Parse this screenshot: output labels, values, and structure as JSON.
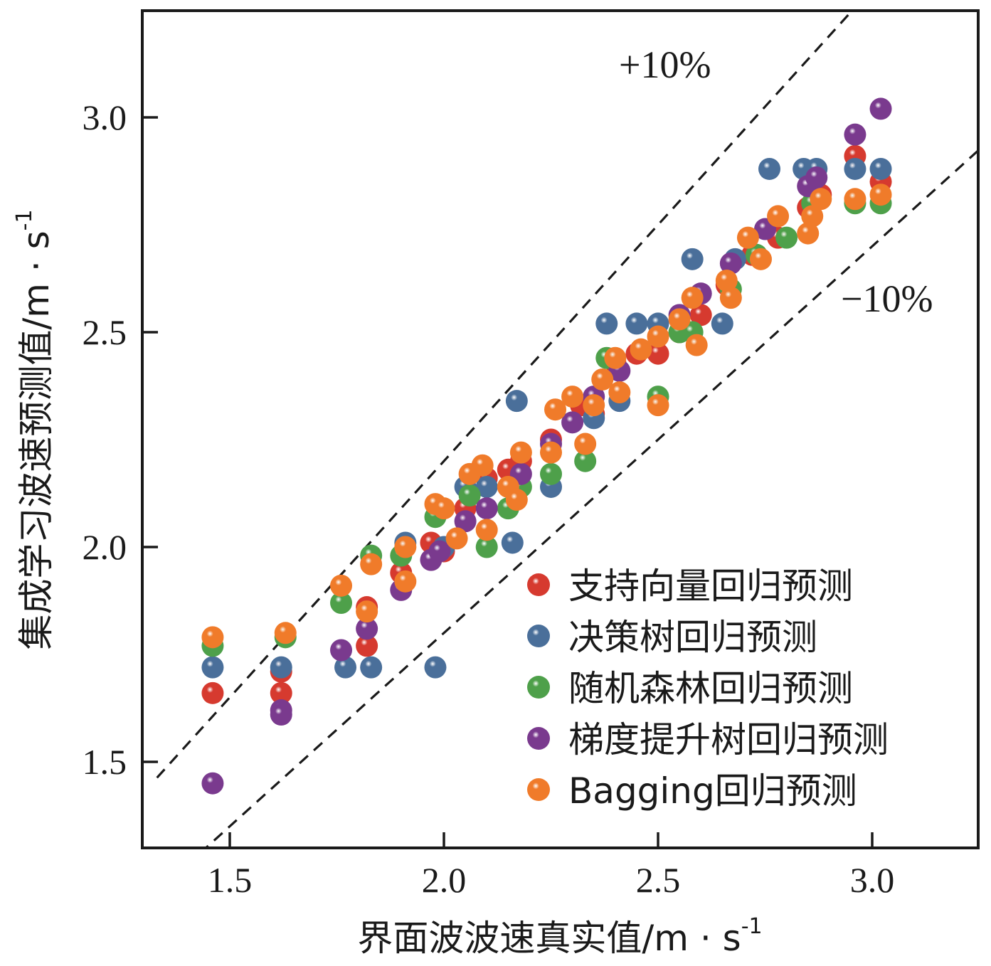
{
  "chart_data": {
    "type": "scatter",
    "xlabel": "界面波波速真实值/m · s",
    "xlabel_sup": "-1",
    "ylabel": "集成学习波速预测值/m · s",
    "ylabel_sup": "-1",
    "xlim": [
      1.33,
      3.25
    ],
    "ylim": [
      1.3,
      3.25
    ],
    "xticks": [
      1.5,
      2.0,
      2.5,
      3.0
    ],
    "xtick_labels": [
      "1.5",
      "2.0",
      "2.5",
      "3.0"
    ],
    "yticks": [
      1.5,
      2.0,
      2.5,
      3.0
    ],
    "ytick_labels": [
      "1.5",
      "2.0",
      "2.5",
      "3.0"
    ],
    "grid": false,
    "legend_position": "bottom-right",
    "annotations": [
      {
        "text": "+10%",
        "x": 2.55,
        "y": 3.12
      },
      {
        "text": "−10%",
        "x": 3.15,
        "y": 2.58
      }
    ],
    "reference_lines": [
      {
        "name": "+10%",
        "slope": 1.1
      },
      {
        "name": "-10%",
        "slope": 0.9
      }
    ],
    "series": [
      {
        "name": "支持向量回归预测",
        "color": "#d63a2f",
        "points": [
          [
            1.46,
            1.66
          ],
          [
            1.62,
            1.71
          ],
          [
            1.62,
            1.66
          ],
          [
            1.82,
            1.77
          ],
          [
            1.82,
            1.86
          ],
          [
            1.9,
            1.94
          ],
          [
            1.97,
            2.01
          ],
          [
            2.0,
            1.99
          ],
          [
            2.05,
            2.09
          ],
          [
            2.1,
            2.16
          ],
          [
            2.15,
            2.18
          ],
          [
            2.18,
            2.2
          ],
          [
            2.25,
            2.25
          ],
          [
            2.32,
            2.33
          ],
          [
            2.35,
            2.31
          ],
          [
            2.4,
            2.43
          ],
          [
            2.45,
            2.45
          ],
          [
            2.5,
            2.45
          ],
          [
            2.55,
            2.5
          ],
          [
            2.6,
            2.54
          ],
          [
            2.66,
            2.61
          ],
          [
            2.72,
            2.68
          ],
          [
            2.78,
            2.72
          ],
          [
            2.85,
            2.79
          ],
          [
            2.88,
            2.82
          ],
          [
            2.96,
            2.91
          ],
          [
            3.02,
            2.85
          ]
        ]
      },
      {
        "name": "决策树回归预测",
        "color": "#4a6f9a",
        "points": [
          [
            1.46,
            1.72
          ],
          [
            1.62,
            1.72
          ],
          [
            1.77,
            1.72
          ],
          [
            1.83,
            1.72
          ],
          [
            1.91,
            2.01
          ],
          [
            1.98,
            1.72
          ],
          [
            2.0,
            2.0
          ],
          [
            2.05,
            2.14
          ],
          [
            2.1,
            2.14
          ],
          [
            2.16,
            2.01
          ],
          [
            2.17,
            2.34
          ],
          [
            2.25,
            2.14
          ],
          [
            2.35,
            2.3
          ],
          [
            2.38,
            2.52
          ],
          [
            2.41,
            2.34
          ],
          [
            2.45,
            2.52
          ],
          [
            2.5,
            2.52
          ],
          [
            2.58,
            2.67
          ],
          [
            2.65,
            2.52
          ],
          [
            2.68,
            2.67
          ],
          [
            2.76,
            2.88
          ],
          [
            2.84,
            2.88
          ],
          [
            2.87,
            2.88
          ],
          [
            2.96,
            2.88
          ],
          [
            3.02,
            2.88
          ]
        ]
      },
      {
        "name": "随机森林回归预测",
        "color": "#4ea04a",
        "points": [
          [
            1.46,
            1.77
          ],
          [
            1.63,
            1.79
          ],
          [
            1.76,
            1.87
          ],
          [
            1.83,
            1.98
          ],
          [
            1.9,
            1.98
          ],
          [
            1.98,
            2.07
          ],
          [
            2.06,
            2.12
          ],
          [
            2.1,
            2.0
          ],
          [
            2.15,
            2.09
          ],
          [
            2.18,
            2.14
          ],
          [
            2.25,
            2.17
          ],
          [
            2.33,
            2.2
          ],
          [
            2.38,
            2.44
          ],
          [
            2.5,
            2.35
          ],
          [
            2.55,
            2.5
          ],
          [
            2.58,
            2.5
          ],
          [
            2.67,
            2.6
          ],
          [
            2.73,
            2.68
          ],
          [
            2.8,
            2.72
          ],
          [
            2.86,
            2.8
          ],
          [
            2.96,
            2.8
          ],
          [
            3.02,
            2.8
          ]
        ]
      },
      {
        "name": "梯度提升树回归预测",
        "color": "#7a3a8e",
        "points": [
          [
            1.46,
            1.45
          ],
          [
            1.62,
            1.62
          ],
          [
            1.62,
            1.61
          ],
          [
            1.76,
            1.76
          ],
          [
            1.82,
            1.81
          ],
          [
            1.9,
            1.9
          ],
          [
            1.97,
            1.97
          ],
          [
            1.99,
            1.99
          ],
          [
            2.05,
            2.06
          ],
          [
            2.1,
            2.09
          ],
          [
            2.18,
            2.17
          ],
          [
            2.25,
            2.24
          ],
          [
            2.3,
            2.29
          ],
          [
            2.35,
            2.35
          ],
          [
            2.41,
            2.41
          ],
          [
            2.55,
            2.54
          ],
          [
            2.6,
            2.59
          ],
          [
            2.67,
            2.66
          ],
          [
            2.75,
            2.74
          ],
          [
            2.85,
            2.84
          ],
          [
            2.87,
            2.86
          ],
          [
            2.96,
            2.96
          ],
          [
            3.02,
            3.02
          ]
        ]
      },
      {
        "name": "Bagging回归预测",
        "color": "#f07b2a",
        "points": [
          [
            1.46,
            1.79
          ],
          [
            1.63,
            1.8
          ],
          [
            1.76,
            1.91
          ],
          [
            1.82,
            1.85
          ],
          [
            1.83,
            1.96
          ],
          [
            1.91,
            2.0
          ],
          [
            1.91,
            1.92
          ],
          [
            1.98,
            2.1
          ],
          [
            2.0,
            2.09
          ],
          [
            2.03,
            2.02
          ],
          [
            2.06,
            2.17
          ],
          [
            2.09,
            2.19
          ],
          [
            2.1,
            2.04
          ],
          [
            2.15,
            2.14
          ],
          [
            2.17,
            2.11
          ],
          [
            2.18,
            2.22
          ],
          [
            2.25,
            2.22
          ],
          [
            2.26,
            2.32
          ],
          [
            2.3,
            2.35
          ],
          [
            2.33,
            2.24
          ],
          [
            2.35,
            2.33
          ],
          [
            2.37,
            2.39
          ],
          [
            2.4,
            2.44
          ],
          [
            2.41,
            2.36
          ],
          [
            2.46,
            2.46
          ],
          [
            2.5,
            2.49
          ],
          [
            2.5,
            2.33
          ],
          [
            2.55,
            2.53
          ],
          [
            2.58,
            2.58
          ],
          [
            2.59,
            2.47
          ],
          [
            2.66,
            2.62
          ],
          [
            2.67,
            2.58
          ],
          [
            2.71,
            2.72
          ],
          [
            2.74,
            2.67
          ],
          [
            2.78,
            2.77
          ],
          [
            2.85,
            2.73
          ],
          [
            2.86,
            2.77
          ],
          [
            2.88,
            2.81
          ],
          [
            2.96,
            2.81
          ],
          [
            3.02,
            2.82
          ]
        ]
      }
    ]
  }
}
